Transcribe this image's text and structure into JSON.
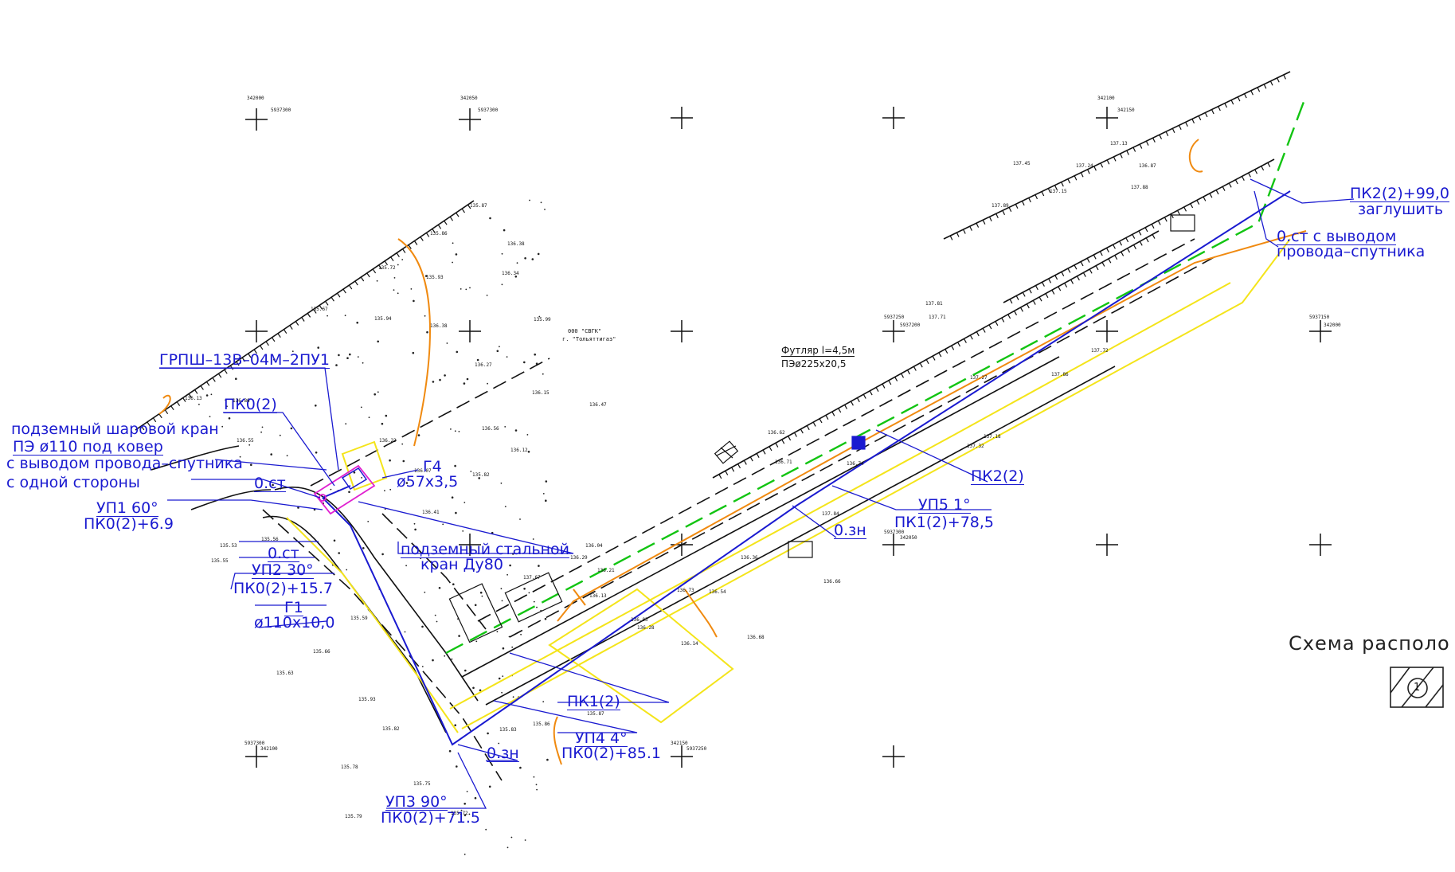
{
  "labels": {
    "grpsh": "ГРПШ–13В–04М–2ПУ1",
    "pk0": "ПК0(2)",
    "kran_line1": "подземный шаровой кран",
    "kran_line2": "ПЭ ø110 под ковер",
    "kran_line3": "с выводом провода–спутника",
    "kran_line4": "с одной стороны",
    "ot_1": "0.ст",
    "g4_line1": "Г4",
    "g4_line2": "ø57х3,5",
    "up1_line1": "УП1 60°",
    "up1_line2": "ПК0(2)+6.9",
    "ot_2": "0.ст",
    "up2_line1": "УП2 30°",
    "up2_line2": "ПК0(2)+15.7",
    "g1_line1": "Г1",
    "g1_line2": "ø110х10,0",
    "steel_line1": "подземный стальной",
    "steel_line2": "кран Ду80",
    "pk1": "ПК1(2)",
    "up4_line1": "УП4 4°",
    "up4_line2": "ПК0(2)+85.1",
    "ozn_1": "0.зн",
    "up3_line1": "УП3 90°",
    "up3_line2": "ПК0(2)+71.5",
    "pk2": "ПК2(2)",
    "up5_line1": "УП5 1°",
    "up5_line2": "ПК1(2)+78,5",
    "ozn_2": "0.зн",
    "futlyar_line1": "Футляр l=4,5м",
    "futlyar_line2": "ПЭø225х20,5",
    "pk2_99_line1": "ПК2(2)+99,0",
    "pk2_99_line2": "заглушить",
    "ot_3_line1": "0.ст с выводом",
    "ot_3_line2": "провода–спутника",
    "sgk_line1": "000 \"СВГК\"",
    "sgk_line2": "г. \"Тольяттигаз\"",
    "schema_title": "Схема располо",
    "schema_num": "1"
  },
  "elevations": [
    "135.87",
    "135.86",
    "136.38",
    "136.34",
    "135.72",
    "135.93",
    "135.67",
    "135.94",
    "136.38",
    "135.99",
    "136.27",
    "136.15",
    "136.47",
    "136.56",
    "136.12",
    "136.22",
    "136.07",
    "135.82",
    "136.41",
    "136.04",
    "136.29",
    "136.21",
    "136.13",
    "136.03",
    "136.14",
    "136.28",
    "136.73",
    "136.54",
    "136.68",
    "136.36",
    "136.62",
    "136.71",
    "136.74",
    "136.66",
    "137.84",
    "137.18",
    "137.86",
    "137.27",
    "137.32",
    "137.72",
    "137.81",
    "137.71",
    "137.45",
    "137.24",
    "137.13",
    "137.15",
    "137.89",
    "137.88",
    "136.87",
    "135.83",
    "135.93",
    "135.82",
    "135.75",
    "135.78",
    "135.72",
    "135.79",
    "135.63",
    "135.66",
    "135.59",
    "135.56",
    "135.55",
    "135.53",
    "136.13",
    "136.86",
    "136.55",
    "137.67"
  ],
  "coordinates": [
    "342000",
    "5937300",
    "342050",
    "5937300",
    "342100",
    "342150",
    "5937250",
    "5937200",
    "5937150"
  ]
}
